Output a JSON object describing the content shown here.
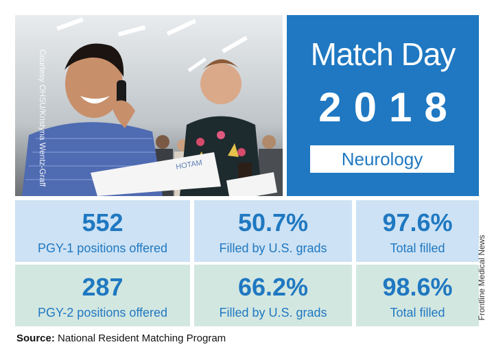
{
  "photo": {
    "credit": "Courtesy OHSU/Kristyna Wentz-Graff",
    "description_icon": "photo-icon"
  },
  "title": {
    "line1": "Match Day",
    "line2": "2018",
    "specialty": "Neurology"
  },
  "stats": {
    "pgy1": {
      "positions": {
        "value": "552",
        "label": "PGY-1 positions offered"
      },
      "us_grads": {
        "value": "50.7%",
        "label": "Filled by U.S. grads"
      },
      "total": {
        "value": "97.6%",
        "label": "Total filled"
      }
    },
    "pgy2": {
      "positions": {
        "value": "287",
        "label": "PGY-2 positions offered"
      },
      "us_grads": {
        "value": "66.2%",
        "label": "Filled by U.S. grads"
      },
      "total": {
        "value": "98.6%",
        "label": "Total filled"
      }
    }
  },
  "footer": {
    "source_label": "Source:",
    "source_text": "National Resident Matching Program",
    "side_credit": "Frontline Medical News"
  },
  "colors": {
    "accent": "#1f78c1",
    "row1_bg": "#cde2f4",
    "row2_bg": "#d3e7e1"
  }
}
